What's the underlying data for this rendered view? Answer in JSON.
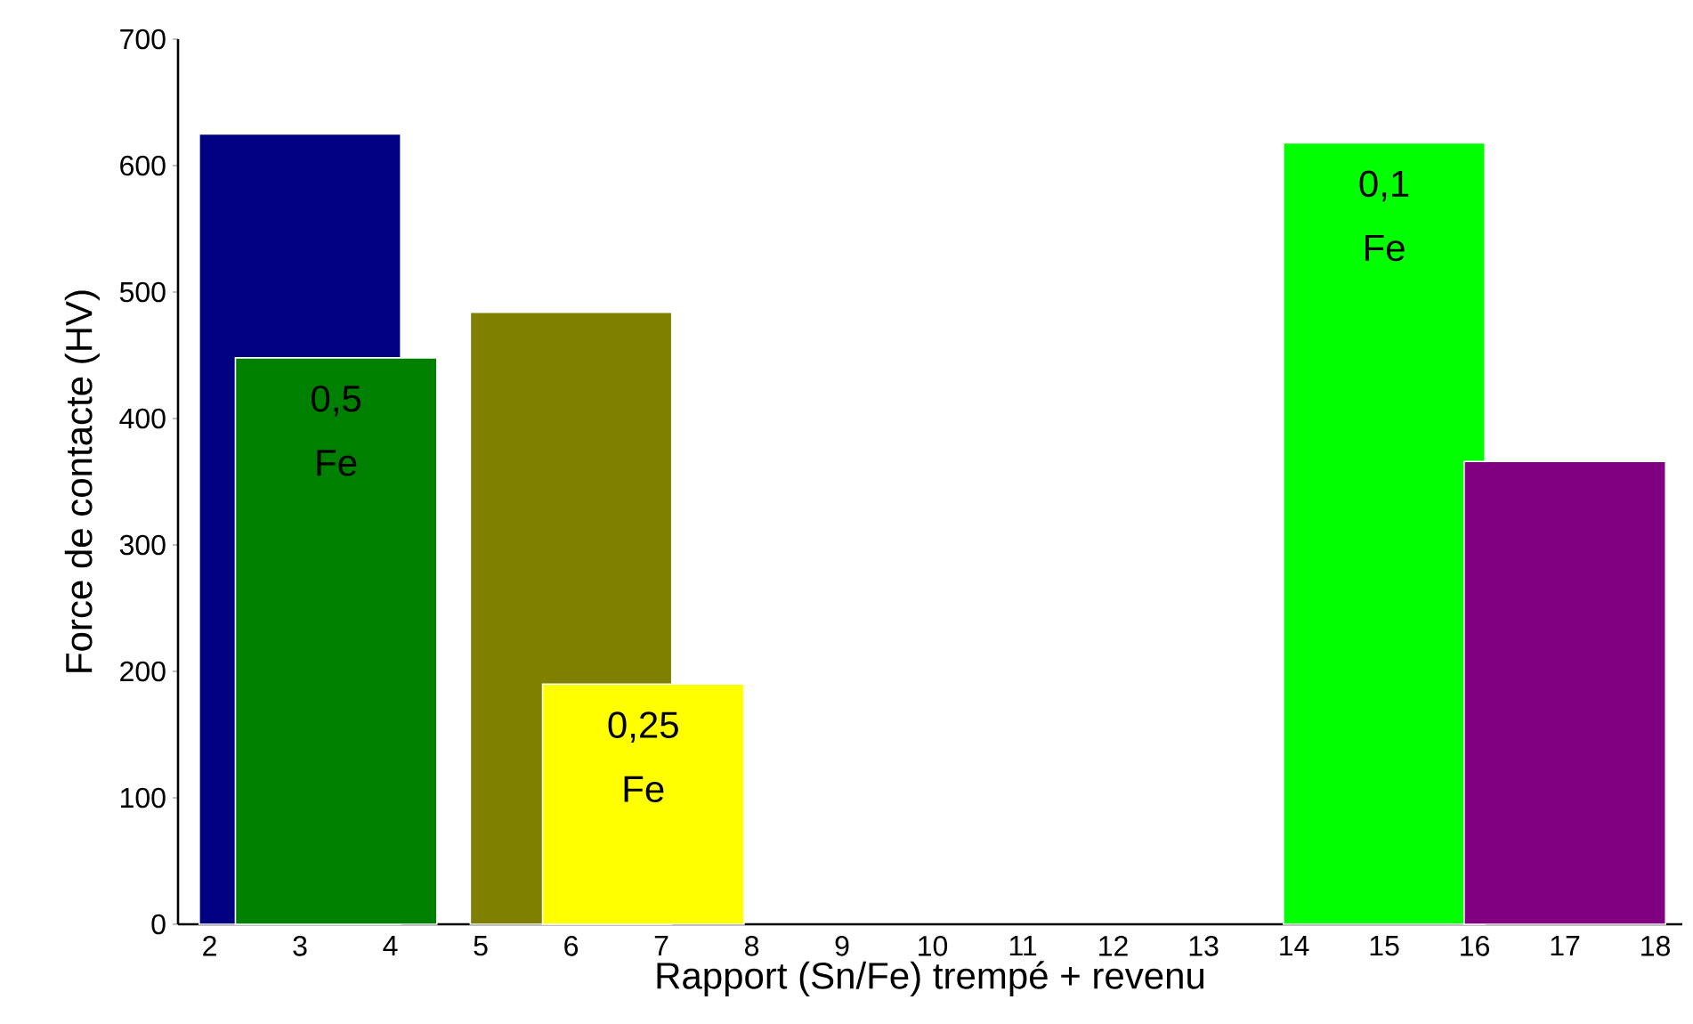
{
  "chart_data": {
    "type": "bar",
    "xlabel": "Rapport (Sn/Fe) trempé + revenu",
    "ylabel": "Force de contacte (HV)",
    "x": [
      3,
      3.4,
      6,
      6.8,
      15,
      17
    ],
    "values": [
      625,
      448,
      484,
      190,
      618,
      366
    ],
    "colors": [
      "#000080",
      "#008000",
      "#808000",
      "#ffff00",
      "#00ff00",
      "#800080"
    ],
    "xlim": [
      1.65,
      18.3
    ],
    "ylim": [
      0,
      700
    ],
    "xticks": [
      2,
      3,
      4,
      5,
      6,
      7,
      8,
      9,
      10,
      11,
      12,
      13,
      14,
      15,
      16,
      17,
      18
    ],
    "yticks": [
      0,
      100,
      200,
      300,
      400,
      500,
      600,
      700
    ],
    "grid": false,
    "annotations": [
      {
        "text": "0,5 Fe",
        "x": 3.4,
        "y": 448
      },
      {
        "text": "0,25 Fe",
        "x": 6.8,
        "y": 190
      },
      {
        "text": "0,1 Fe",
        "x": 15,
        "y": 618
      }
    ]
  }
}
